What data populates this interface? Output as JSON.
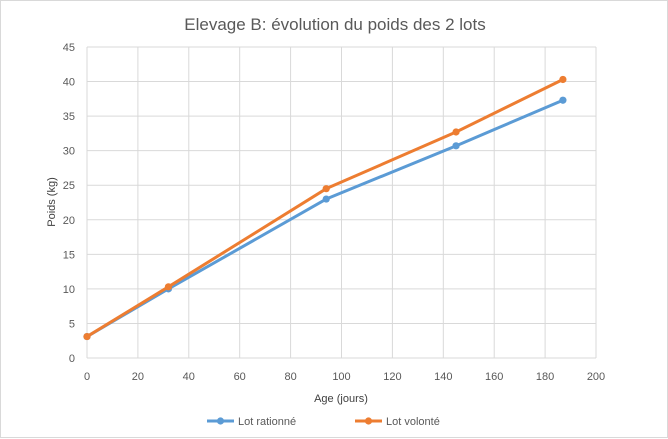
{
  "chart_data": {
    "type": "line",
    "title": "Elevage B: évolution du poids des 2 lots",
    "xlabel": "Age (jours)",
    "ylabel": "Poids (kg)",
    "xlim": [
      0,
      200
    ],
    "ylim": [
      0,
      45
    ],
    "xticks": [
      0,
      20,
      40,
      60,
      80,
      100,
      120,
      140,
      160,
      180,
      200
    ],
    "yticks": [
      0,
      5,
      10,
      15,
      20,
      25,
      30,
      35,
      40,
      45
    ],
    "grid": true,
    "legend_position": "bottom",
    "series": [
      {
        "name": "Lot rationné",
        "color": "#5b9bd5",
        "x": [
          0,
          32,
          94,
          145,
          187
        ],
        "y": [
          3.1,
          10.0,
          23.0,
          30.7,
          37.3
        ]
      },
      {
        "name": "Lot volonté",
        "color": "#ed7d31",
        "x": [
          0,
          32,
          94,
          145,
          187
        ],
        "y": [
          3.1,
          10.3,
          24.5,
          32.7,
          40.3
        ]
      }
    ]
  }
}
